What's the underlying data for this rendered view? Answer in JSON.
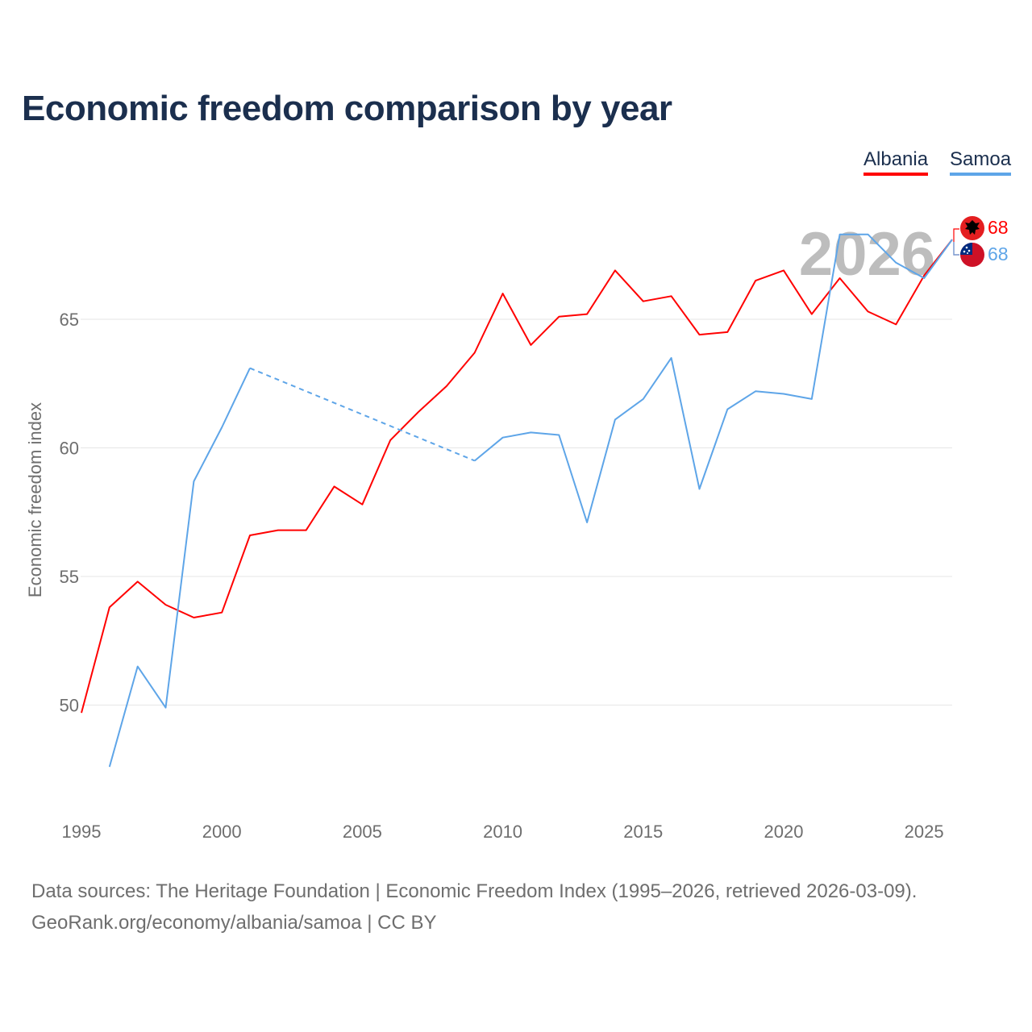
{
  "title": "Economic freedom comparison by year",
  "legend": [
    {
      "label": "Albania",
      "color": "#ff0000"
    },
    {
      "label": "Samoa",
      "color": "#5ea5e8"
    }
  ],
  "source_line1": "Data sources: The Heritage Foundation | Economic Freedom Index (1995–2026, retrieved 2026-03-09).",
  "source_line2": "GeoRank.org/economy/albania/samoa | CC BY",
  "chart_data": {
    "type": "line",
    "title": "Economic freedom comparison by year",
    "xlabel": "",
    "ylabel": "Economic freedom index",
    "xlim": [
      1995,
      2026
    ],
    "ylim": [
      46,
      70
    ],
    "xticks": [
      1995,
      2000,
      2005,
      2010,
      2015,
      2020,
      2025
    ],
    "yticks": [
      50,
      55,
      60,
      65
    ],
    "grid": "horizontal",
    "legend_position": "top-right",
    "current_year_label": "2026",
    "x": [
      1995,
      1996,
      1997,
      1998,
      1999,
      2000,
      2001,
      2002,
      2003,
      2004,
      2005,
      2006,
      2007,
      2008,
      2009,
      2010,
      2011,
      2012,
      2013,
      2014,
      2015,
      2016,
      2017,
      2018,
      2019,
      2020,
      2021,
      2022,
      2023,
      2024,
      2025,
      2026
    ],
    "series": [
      {
        "name": "Albania",
        "color": "#ff0000",
        "end_label": "68",
        "flag": "albania-flag",
        "values": [
          49.7,
          53.8,
          54.8,
          53.9,
          53.4,
          53.6,
          56.6,
          56.8,
          56.8,
          58.5,
          57.8,
          60.3,
          61.4,
          62.4,
          63.7,
          66.0,
          64.0,
          65.1,
          65.2,
          66.9,
          65.7,
          65.9,
          64.4,
          64.5,
          66.5,
          66.9,
          65.2,
          66.6,
          65.3,
          64.8,
          66.7,
          68.1
        ]
      },
      {
        "name": "Samoa",
        "color": "#5ea5e8",
        "end_label": "68",
        "flag": "samoa-flag",
        "values": [
          null,
          47.6,
          51.5,
          49.9,
          58.7,
          60.8,
          63.1,
          null,
          null,
          null,
          null,
          null,
          null,
          null,
          59.5,
          60.4,
          60.6,
          60.5,
          57.1,
          61.1,
          61.9,
          63.5,
          58.4,
          61.5,
          62.2,
          62.1,
          61.9,
          68.3,
          68.3,
          67.2,
          66.6,
          68.1
        ]
      }
    ]
  }
}
